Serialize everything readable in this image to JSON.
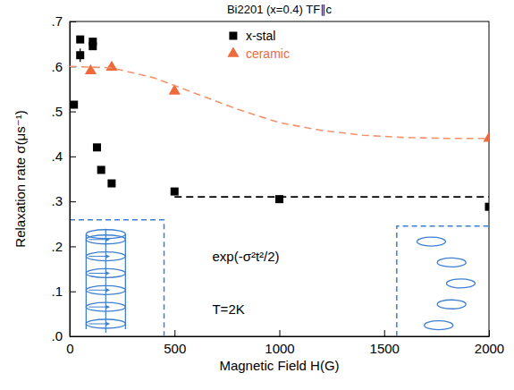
{
  "chart_data": {
    "type": "scatter",
    "title": "Bi2201 (x=0.4) TF∥c",
    "x_label": "Magnetic Field H(G)",
    "y_label": "Relaxation rate σ(μs⁻¹)",
    "xlim": [
      0,
      2000
    ],
    "ylim": [
      0,
      0.7
    ],
    "xticks": [
      0,
      500,
      1000,
      1500,
      2000
    ],
    "yticks": [
      {
        "value": 0,
        "label": ".0"
      },
      {
        "value": 0.1,
        "label": ".1"
      },
      {
        "value": 0.2,
        "label": ".2"
      },
      {
        "value": 0.3,
        "label": ".3"
      },
      {
        "value": 0.4,
        "label": ".4"
      },
      {
        "value": 0.5,
        "label": ".5"
      },
      {
        "value": 0.6,
        "label": ".6"
      },
      {
        "value": 0.7,
        "label": ".7"
      }
    ],
    "grid": false,
    "legend": "top",
    "annotations": [
      "exp(-σ²t²/2)",
      "T=2K"
    ],
    "series": [
      {
        "name": "x-stal",
        "type": "scatter",
        "marker": "square",
        "color": "#000000",
        "x": [
          20,
          50,
          50,
          110,
          110,
          130,
          150,
          200,
          500,
          1000,
          2000
        ],
        "values": [
          0.515,
          0.66,
          0.625,
          0.655,
          0.645,
          0.42,
          0.37,
          0.34,
          0.322,
          0.305,
          0.288
        ],
        "errors": [
          null,
          null,
          0.015,
          null,
          null,
          null,
          null,
          null,
          null,
          null,
          null
        ]
      },
      {
        "name": "ceramic",
        "type": "scatter",
        "marker": "triangle",
        "color": "#ef6a3a",
        "x": [
          100,
          200,
          500,
          2000
        ],
        "values": [
          0.59,
          0.598,
          0.545,
          0.44
        ]
      },
      {
        "type": "line",
        "line_style": "dashed",
        "color": "#f4926a",
        "x": [
          0,
          200,
          400,
          600,
          800,
          1000,
          1200,
          1400,
          1600,
          1800,
          2000
        ],
        "values": [
          0.6,
          0.597,
          0.575,
          0.54,
          0.505,
          0.475,
          0.458,
          0.447,
          0.442,
          0.44,
          0.44
        ]
      },
      {
        "type": "line",
        "line_style": "dashed",
        "color": "#000000",
        "x": [
          500,
          2000
        ],
        "values": [
          0.31,
          0.31
        ]
      }
    ]
  }
}
